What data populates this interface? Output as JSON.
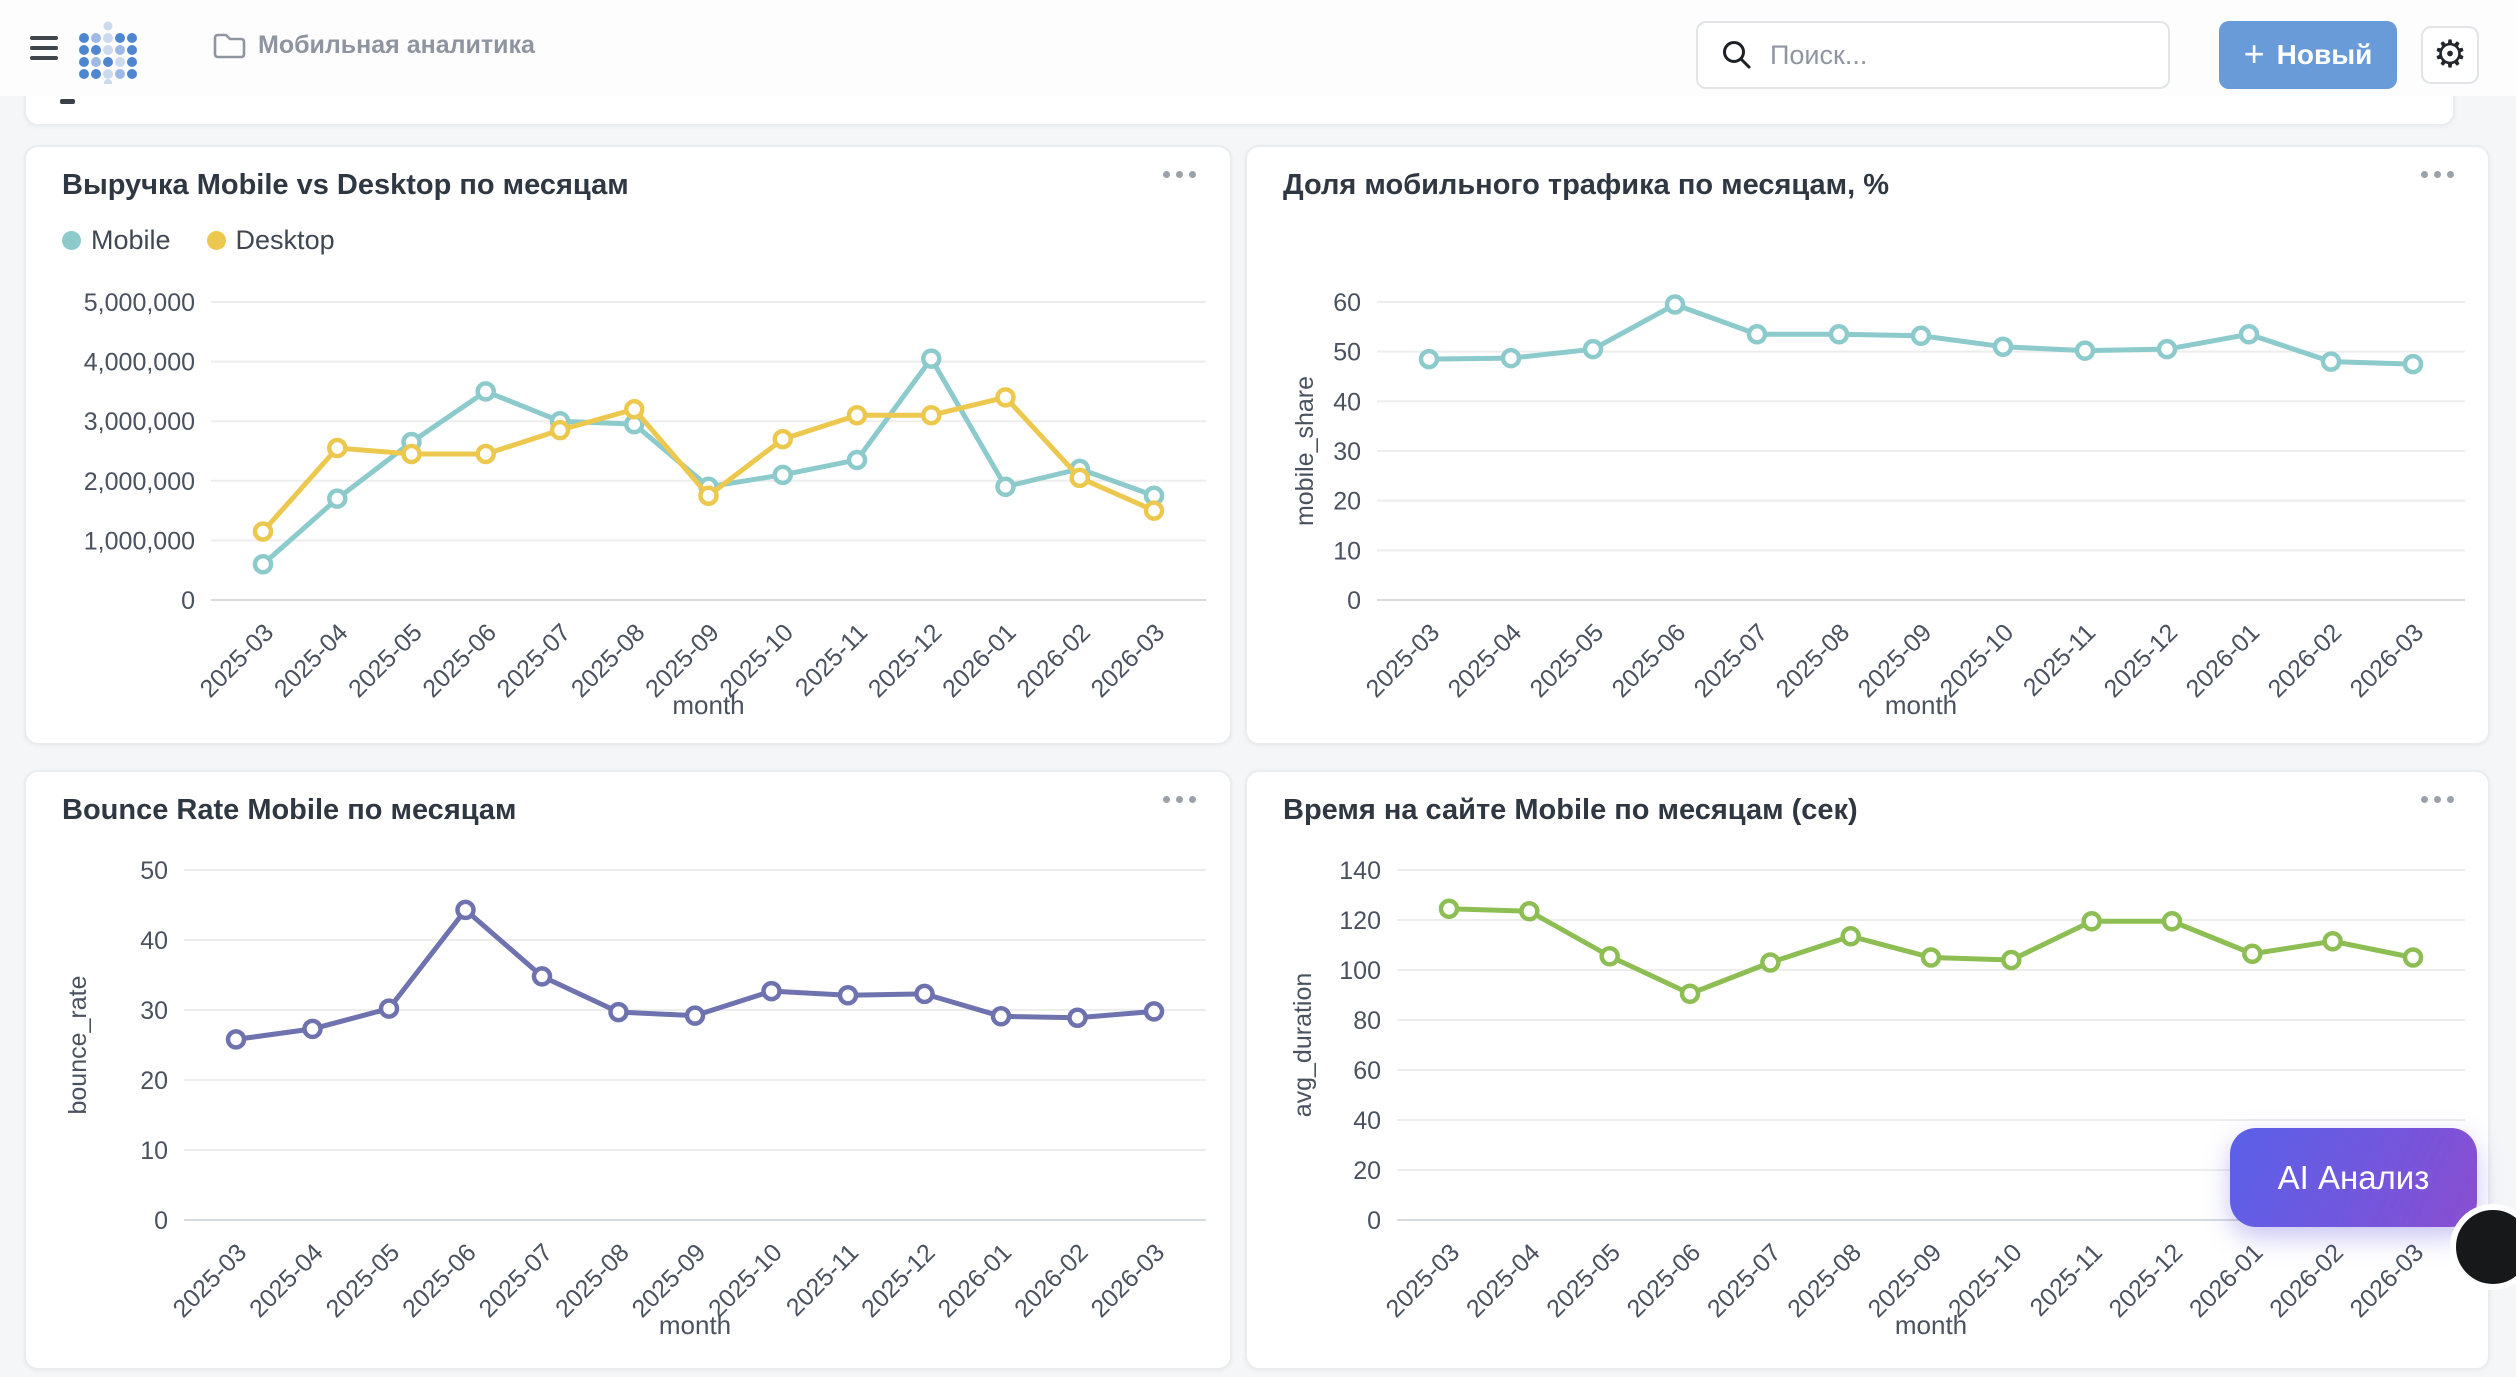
{
  "header": {
    "breadcrumb": {
      "label": "Мобильная аналитика"
    },
    "search": {
      "placeholder": "Поиск..."
    },
    "new_button": {
      "label": "Новый"
    }
  },
  "ai_button": {
    "label": "AI Анализ"
  },
  "colors": {
    "accent_blue": "#689bd8",
    "ai_gradient_start": "#5a60e8",
    "ai_gradient_end": "#8a4ed0",
    "mobile_teal": "#8ccacc",
    "desktop_yellow": "#ecc94e",
    "bounce_purple": "#6e72ae",
    "duration_green": "#8cbe53"
  },
  "chart_data": [
    {
      "type": "line",
      "title": "Выручка Mobile vs Desktop по месяцам",
      "categories": [
        "2025-03",
        "2025-04",
        "2025-05",
        "2025-06",
        "2025-07",
        "2025-08",
        "2025-09",
        "2025-10",
        "2025-11",
        "2025-12",
        "2026-01",
        "2026-02",
        "2026-03"
      ],
      "series": [
        {
          "name": "Mobile",
          "color": "#8ccacc",
          "values": [
            600000,
            1700000,
            2650000,
            3500000,
            3000000,
            2950000,
            1900000,
            2100000,
            2350000,
            4050000,
            1900000,
            2200000,
            1750000
          ]
        },
        {
          "name": "Desktop",
          "color": "#ecc94e",
          "values": [
            1150000,
            2550000,
            2450000,
            2450000,
            2850000,
            3200000,
            1750000,
            2700000,
            3100000,
            3100000,
            3400000,
            2050000,
            1500000
          ]
        }
      ],
      "xlabel": "month",
      "ylabel": "",
      "ylim": [
        0,
        5000000
      ],
      "yticks": [
        0,
        1000000,
        2000000,
        3000000,
        4000000,
        5000000
      ],
      "grid": true,
      "legend_position": "top-left"
    },
    {
      "type": "line",
      "title": "Доля мобильного трафика по месяцам, %",
      "categories": [
        "2025-03",
        "2025-04",
        "2025-05",
        "2025-06",
        "2025-07",
        "2025-08",
        "2025-09",
        "2025-10",
        "2025-11",
        "2025-12",
        "2026-01",
        "2026-02",
        "2026-03"
      ],
      "series": [
        {
          "name": "mobile_share",
          "color": "#8ccacc",
          "values": [
            48.5,
            48.7,
            50.5,
            59.5,
            53.5,
            53.5,
            53.2,
            51,
            50.2,
            50.5,
            53.5,
            48,
            47.5
          ]
        }
      ],
      "xlabel": "month",
      "ylabel": "mobile_share",
      "ylim": [
        0,
        60
      ],
      "yticks": [
        0,
        10,
        20,
        30,
        40,
        50,
        60
      ],
      "grid": true,
      "legend_position": "none"
    },
    {
      "type": "line",
      "title": "Bounce Rate Mobile по месяцам",
      "categories": [
        "2025-03",
        "2025-04",
        "2025-05",
        "2025-06",
        "2025-07",
        "2025-08",
        "2025-09",
        "2025-10",
        "2025-11",
        "2025-12",
        "2026-01",
        "2026-02",
        "2026-03"
      ],
      "series": [
        {
          "name": "bounce_rate",
          "color": "#6e72ae",
          "values": [
            25.8,
            27.3,
            30.2,
            44.3,
            34.8,
            29.7,
            29.2,
            32.7,
            32.1,
            32.3,
            29.1,
            28.9,
            29.8
          ]
        }
      ],
      "xlabel": "month",
      "ylabel": "bounce_rate",
      "ylim": [
        0,
        50
      ],
      "yticks": [
        0,
        10,
        20,
        30,
        40,
        50
      ],
      "grid": true,
      "legend_position": "none"
    },
    {
      "type": "line",
      "title": "Время на сайте Mobile по месяцам (сек)",
      "categories": [
        "2025-03",
        "2025-04",
        "2025-05",
        "2025-06",
        "2025-07",
        "2025-08",
        "2025-09",
        "2025-10",
        "2025-11",
        "2025-12",
        "2026-01",
        "2026-02",
        "2026-03"
      ],
      "series": [
        {
          "name": "avg_duration",
          "color": "#8cbe53",
          "values": [
            124.5,
            123.5,
            105.5,
            90.5,
            103,
            113.5,
            105,
            104,
            119.5,
            119.5,
            106.5,
            111.5,
            105
          ]
        }
      ],
      "xlabel": "month",
      "ylabel": "avg_duration",
      "ylim": [
        0,
        140
      ],
      "yticks": [
        0,
        20,
        40,
        60,
        80,
        100,
        120,
        140
      ],
      "grid": true,
      "legend_position": "none"
    }
  ]
}
